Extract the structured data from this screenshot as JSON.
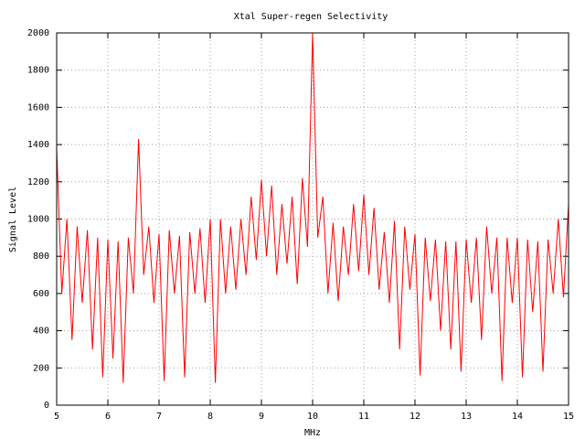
{
  "chart_data": {
    "type": "line",
    "title": "Xtal Super-regen Selectivity",
    "x_label": "MHz",
    "y_label": "Signal Level",
    "xlim": [
      5,
      15
    ],
    "ylim": [
      0,
      2000
    ],
    "xticks": [
      5,
      6,
      7,
      8,
      9,
      10,
      11,
      12,
      13,
      14,
      15
    ],
    "yticks": [
      0,
      200,
      400,
      600,
      800,
      1000,
      1200,
      1400,
      1600,
      1800,
      2000
    ],
    "grid": true,
    "x": [
      5.0,
      5.1,
      5.2,
      5.3,
      5.4,
      5.5,
      5.6,
      5.7,
      5.8,
      5.9,
      6.0,
      6.1,
      6.2,
      6.3,
      6.4,
      6.5,
      6.6,
      6.7,
      6.8,
      6.9,
      7.0,
      7.1,
      7.2,
      7.3,
      7.4,
      7.5,
      7.6,
      7.7,
      7.8,
      7.9,
      8.0,
      8.1,
      8.2,
      8.3,
      8.4,
      8.5,
      8.6,
      8.7,
      8.8,
      8.9,
      9.0,
      9.1,
      9.2,
      9.3,
      9.4,
      9.5,
      9.6,
      9.7,
      9.8,
      9.9,
      10.0,
      10.1,
      10.2,
      10.3,
      10.4,
      10.5,
      10.6,
      10.7,
      10.8,
      10.9,
      11.0,
      11.1,
      11.2,
      11.3,
      11.4,
      11.5,
      11.6,
      11.7,
      11.8,
      11.9,
      12.0,
      12.1,
      12.2,
      12.3,
      12.4,
      12.5,
      12.6,
      12.7,
      12.8,
      12.9,
      13.0,
      13.1,
      13.2,
      13.3,
      13.4,
      13.5,
      13.6,
      13.7,
      13.8,
      13.9,
      14.0,
      14.1,
      14.2,
      14.3,
      14.4,
      14.5,
      14.6,
      14.7,
      14.8,
      14.9,
      15.0
    ],
    "series": [
      {
        "color": "#ff0000",
        "values": [
          1380,
          600,
          1000,
          350,
          960,
          550,
          940,
          300,
          900,
          150,
          890,
          250,
          880,
          120,
          900,
          600,
          1430,
          700,
          960,
          550,
          920,
          130,
          940,
          600,
          910,
          150,
          930,
          600,
          950,
          550,
          1000,
          120,
          1000,
          600,
          960,
          620,
          1000,
          700,
          1120,
          780,
          1210,
          800,
          1180,
          700,
          1080,
          760,
          1120,
          650,
          1220,
          850,
          2000,
          900,
          1120,
          600,
          980,
          560,
          960,
          700,
          1080,
          720,
          1130,
          700,
          1060,
          620,
          930,
          550,
          990,
          300,
          960,
          620,
          920,
          160,
          900,
          560,
          890,
          400,
          880,
          300,
          880,
          180,
          890,
          550,
          900,
          350,
          960,
          600,
          900,
          130,
          900,
          550,
          900,
          150,
          890,
          500,
          880,
          180,
          890,
          600,
          1000,
          580,
          1080
        ]
      }
    ]
  }
}
